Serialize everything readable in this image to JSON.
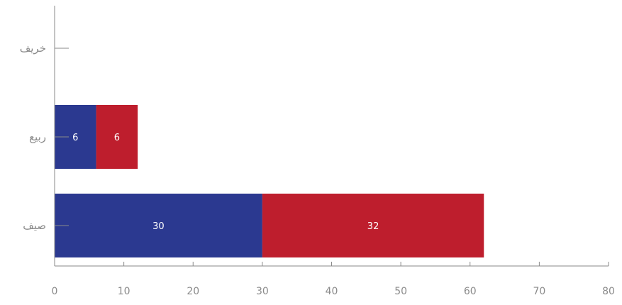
{
  "chart_data": {
    "type": "bar",
    "orientation": "horizontal",
    "stacked": true,
    "categories": [
      "خريف",
      "ربيع",
      "صيف"
    ],
    "series": [
      {
        "values": [
          0,
          6,
          30
        ],
        "color": "#2b3990"
      },
      {
        "values": [
          0,
          6,
          32
        ],
        "color": "#be1e2d"
      }
    ],
    "xlim": [
      0,
      80
    ],
    "xticks": [
      0,
      10,
      20,
      30,
      40,
      50,
      60,
      70,
      80
    ],
    "title": "",
    "xlabel": "",
    "ylabel": "",
    "grid": false,
    "legend": "none",
    "data_labels": true
  }
}
